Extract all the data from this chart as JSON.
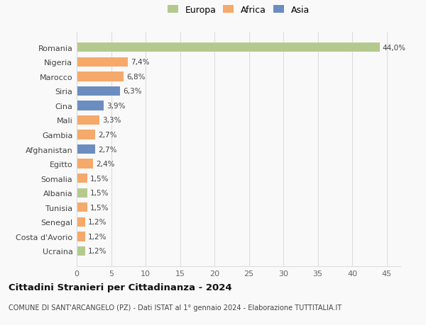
{
  "categories": [
    "Ucraina",
    "Costa d'Avorio",
    "Senegal",
    "Tunisia",
    "Albania",
    "Somalia",
    "Egitto",
    "Afghanistan",
    "Gambia",
    "Mali",
    "Cina",
    "Siria",
    "Marocco",
    "Nigeria",
    "Romania"
  ],
  "values": [
    1.2,
    1.2,
    1.2,
    1.5,
    1.5,
    1.5,
    2.4,
    2.7,
    2.7,
    3.3,
    3.9,
    6.3,
    6.8,
    7.4,
    44.0
  ],
  "labels": [
    "1,2%",
    "1,2%",
    "1,2%",
    "1,5%",
    "1,5%",
    "1,5%",
    "2,4%",
    "2,7%",
    "2,7%",
    "3,3%",
    "3,9%",
    "6,3%",
    "6,8%",
    "7,4%",
    "44,0%"
  ],
  "colors": [
    "#b5c98e",
    "#f5a96a",
    "#f5a96a",
    "#f5a96a",
    "#b5c98e",
    "#f5a96a",
    "#f5a96a",
    "#6b8dbf",
    "#f5a96a",
    "#f5a96a",
    "#6b8dbf",
    "#6b8dbf",
    "#f5a96a",
    "#f5a96a",
    "#b5c98e"
  ],
  "legend": [
    {
      "label": "Europa",
      "color": "#b5c98e"
    },
    {
      "label": "Africa",
      "color": "#f5a96a"
    },
    {
      "label": "Asia",
      "color": "#6b8dbf"
    }
  ],
  "title": "Cittadini Stranieri per Cittadinanza - 2024",
  "subtitle": "COMUNE DI SANT'ARCANGELO (PZ) - Dati ISTAT al 1° gennaio 2024 - Elaborazione TUTTITALIA.IT",
  "xlim": [
    0,
    47
  ],
  "xticks": [
    0,
    5,
    10,
    15,
    20,
    25,
    30,
    35,
    40,
    45
  ],
  "background_color": "#f9f9f9",
  "grid_color": "#dddddd"
}
